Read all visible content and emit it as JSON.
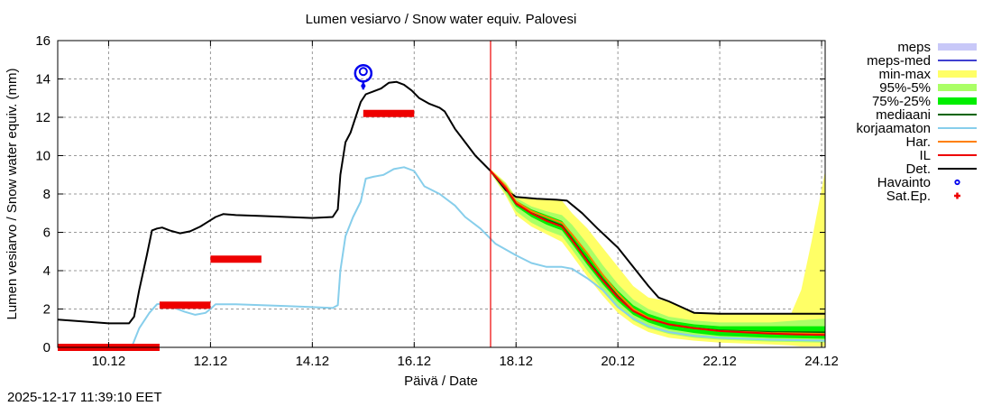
{
  "chart_data": {
    "type": "line",
    "title": "Lumen vesiarvo / Snow water equiv.  Palovesi",
    "xlabel": "Päivä / Date",
    "ylabel": "Lumen vesiarvo / Snow water equiv. (mm)",
    "xlim": [
      9.0,
      24.07
    ],
    "ylim": [
      0,
      16
    ],
    "grid": true,
    "x_unit": "day of December",
    "x_ticks": [
      10,
      12,
      14,
      16,
      18,
      20,
      22,
      24
    ],
    "x_tick_labels": [
      "10.12",
      "12.12",
      "14.12",
      "16.12",
      "18.12",
      "20.12",
      "22.12",
      "24.12"
    ],
    "y_ticks": [
      0,
      2,
      4,
      6,
      8,
      10,
      12,
      14,
      16
    ],
    "y_tick_labels": [
      "0",
      "2",
      "4",
      "6",
      "8",
      "10",
      "12",
      "14",
      "16"
    ],
    "now_line_x": 17.5,
    "legend_position": "right-outside",
    "legend": [
      {
        "label": "meps",
        "kind": "band",
        "color": "#c8c8f8"
      },
      {
        "label": "meps-med",
        "kind": "line",
        "color": "#4040d0"
      },
      {
        "label": "min-max",
        "kind": "band",
        "color": "#ffff66"
      },
      {
        "label": "95%-5%",
        "kind": "band",
        "color": "#aaff66"
      },
      {
        "label": "75%-25%",
        "kind": "band",
        "color": "#00ee00"
      },
      {
        "label": "mediaani",
        "kind": "line",
        "color": "#006400"
      },
      {
        "label": "korjaamaton",
        "kind": "line",
        "color": "#87ceeb"
      },
      {
        "label": "Har.",
        "kind": "line",
        "color": "#ff8000"
      },
      {
        "label": "IL",
        "kind": "line",
        "color": "#ee0000"
      },
      {
        "label": "Det.",
        "kind": "line",
        "color": "#000000"
      },
      {
        "label": "Havainto",
        "kind": "marker-circle",
        "color": "#0000ee"
      },
      {
        "label": "Sat.Ep.",
        "kind": "marker-plus",
        "color": "#ee0000"
      }
    ],
    "series": [
      {
        "name": "Det.",
        "color": "#000000",
        "x": [
          9.0,
          10.0,
          10.4,
          10.5,
          10.6,
          10.75,
          10.85,
          10.95,
          11.05,
          11.2,
          11.4,
          11.6,
          11.8,
          11.95,
          12.1,
          12.25,
          12.5,
          13.0,
          13.5,
          14.0,
          14.4,
          14.5,
          14.55,
          14.65,
          14.75,
          14.85,
          14.95,
          15.05,
          15.2,
          15.35,
          15.5,
          15.65,
          15.8,
          15.95,
          16.1,
          16.3,
          16.5,
          16.6,
          16.8,
          17.0,
          17.2,
          17.5,
          17.8,
          18.0,
          18.4,
          18.8,
          19.0,
          19.3,
          19.6,
          20.0,
          20.3,
          20.6,
          20.8,
          21.0,
          21.5,
          22.0,
          23.0,
          24.07
        ],
        "y": [
          1.45,
          1.25,
          1.25,
          1.6,
          3.0,
          4.8,
          6.1,
          6.2,
          6.25,
          6.1,
          5.95,
          6.05,
          6.3,
          6.55,
          6.8,
          6.95,
          6.9,
          6.85,
          6.8,
          6.75,
          6.8,
          7.2,
          9.0,
          10.7,
          11.2,
          12.0,
          12.8,
          13.2,
          13.35,
          13.5,
          13.8,
          13.85,
          13.7,
          13.4,
          13.0,
          12.7,
          12.5,
          12.3,
          11.4,
          10.7,
          10.0,
          9.2,
          8.2,
          7.85,
          7.75,
          7.7,
          7.65,
          7.0,
          6.2,
          5.2,
          4.2,
          3.2,
          2.6,
          2.4,
          1.8,
          1.75,
          1.75,
          1.75
        ]
      },
      {
        "name": "korjaamaton",
        "color": "#87ceeb",
        "x": [
          10.45,
          10.6,
          10.8,
          10.95,
          11.1,
          11.3,
          11.5,
          11.7,
          11.9,
          12.0,
          12.1,
          12.5,
          13.0,
          13.5,
          14.0,
          14.4,
          14.5,
          14.55,
          14.65,
          14.8,
          14.95,
          15.05,
          15.2,
          15.4,
          15.6,
          15.8,
          16.0,
          16.2,
          16.5,
          16.8,
          17.0,
          17.3,
          17.6,
          18.0,
          18.3,
          18.6,
          18.9,
          19.1,
          19.4,
          19.7,
          20.0,
          20.3,
          20.6,
          21.0,
          21.5,
          22.0,
          23.0,
          24.07
        ],
        "y": [
          0.0,
          1.0,
          1.8,
          2.25,
          2.3,
          2.05,
          1.85,
          1.7,
          1.8,
          2.0,
          2.25,
          2.25,
          2.2,
          2.15,
          2.1,
          2.05,
          2.2,
          4.0,
          5.8,
          6.8,
          7.6,
          8.8,
          8.9,
          9.0,
          9.3,
          9.4,
          9.2,
          8.4,
          8.0,
          7.4,
          6.8,
          6.2,
          5.4,
          4.8,
          4.4,
          4.2,
          4.2,
          4.1,
          3.6,
          3.0,
          2.1,
          1.5,
          1.1,
          0.8,
          0.6,
          0.5,
          0.4,
          0.35
        ]
      },
      {
        "name": "IL",
        "color": "#ee0000",
        "x": [
          17.5,
          17.8,
          18.0,
          18.3,
          18.6,
          18.9,
          19.1,
          19.4,
          19.7,
          20.0,
          20.3,
          20.6,
          21.0,
          21.5,
          22.0,
          22.5,
          23.0,
          23.5,
          24.07
        ],
        "y": [
          9.2,
          8.3,
          7.5,
          7.0,
          6.6,
          6.3,
          5.6,
          4.5,
          3.5,
          2.6,
          1.9,
          1.5,
          1.2,
          1.0,
          0.85,
          0.78,
          0.72,
          0.68,
          0.65
        ]
      },
      {
        "name": "Har.",
        "color": "#ff8000",
        "x": [
          17.5,
          17.8,
          18.0,
          18.3,
          18.6,
          18.9,
          19.1,
          19.4,
          19.7,
          20.0,
          20.3,
          20.6,
          21.0,
          21.5,
          22.0,
          23.0,
          24.07
        ],
        "y": [
          9.2,
          8.4,
          7.6,
          7.1,
          6.8,
          6.5,
          5.9,
          4.9,
          3.8,
          2.8,
          2.0,
          1.55,
          1.2,
          1.0,
          0.85,
          0.75,
          0.7
        ]
      },
      {
        "name": "mediaani",
        "color": "#006400",
        "x": [
          17.5,
          17.8,
          18.0,
          18.3,
          18.6,
          18.9,
          19.1,
          19.4,
          19.7,
          20.0,
          20.3,
          20.6,
          21.0,
          21.5,
          22.0,
          23.0,
          24.07
        ],
        "y": [
          9.2,
          8.3,
          7.5,
          7.0,
          6.65,
          6.35,
          5.65,
          4.55,
          3.55,
          2.65,
          1.95,
          1.5,
          1.2,
          1.0,
          0.88,
          0.8,
          0.78
        ]
      }
    ],
    "bands": [
      {
        "name": "min-max",
        "color": "#ffff66",
        "x": [
          17.5,
          17.8,
          18.0,
          18.3,
          18.6,
          18.9,
          19.1,
          19.4,
          19.7,
          20.0,
          20.3,
          20.6,
          21.0,
          21.5,
          22.0,
          22.5,
          23.0,
          23.4,
          23.6,
          23.8,
          24.07
        ],
        "low": [
          9.1,
          7.9,
          6.9,
          6.3,
          5.9,
          5.5,
          4.8,
          3.7,
          2.7,
          1.8,
          1.2,
          0.8,
          0.5,
          0.35,
          0.25,
          0.2,
          0.15,
          0.1,
          0.05,
          0.05,
          0.05
        ],
        "high": [
          9.3,
          8.6,
          7.85,
          7.75,
          7.7,
          7.65,
          7.0,
          6.2,
          5.2,
          4.2,
          3.2,
          2.6,
          2.4,
          1.8,
          1.75,
          1.75,
          1.75,
          1.75,
          3.0,
          5.5,
          9.2
        ]
      },
      {
        "name": "95%-5%",
        "color": "#aaff66",
        "x": [
          17.5,
          17.8,
          18.0,
          18.3,
          18.6,
          18.9,
          19.1,
          19.4,
          19.7,
          20.0,
          20.3,
          20.6,
          21.0,
          21.5,
          22.0,
          22.5,
          23.0,
          23.5,
          24.07
        ],
        "low": [
          9.15,
          8.0,
          7.1,
          6.5,
          6.1,
          5.8,
          5.1,
          4.0,
          3.0,
          2.1,
          1.4,
          1.0,
          0.7,
          0.5,
          0.4,
          0.35,
          0.3,
          0.28,
          0.25
        ],
        "high": [
          9.25,
          8.55,
          7.8,
          7.35,
          7.1,
          6.9,
          6.4,
          5.4,
          4.3,
          3.3,
          2.5,
          2.0,
          1.6,
          1.4,
          1.3,
          1.3,
          1.3,
          1.4,
          1.5
        ]
      },
      {
        "name": "75%-25%",
        "color": "#00ee00",
        "x": [
          17.5,
          17.8,
          18.0,
          18.3,
          18.6,
          18.9,
          19.1,
          19.4,
          19.7,
          20.0,
          20.3,
          20.6,
          21.0,
          21.5,
          22.0,
          22.5,
          23.0,
          23.5,
          24.07
        ],
        "low": [
          9.18,
          8.15,
          7.35,
          6.8,
          6.4,
          6.1,
          5.4,
          4.3,
          3.3,
          2.4,
          1.7,
          1.3,
          0.95,
          0.75,
          0.6,
          0.55,
          0.5,
          0.48,
          0.45
        ],
        "high": [
          9.22,
          8.45,
          7.65,
          7.2,
          6.9,
          6.6,
          5.95,
          4.9,
          3.85,
          2.95,
          2.2,
          1.75,
          1.4,
          1.2,
          1.1,
          1.1,
          1.1,
          1.1,
          1.1
        ]
      }
    ],
    "havainto": [
      {
        "x": 15.0,
        "y": 14.2
      }
    ],
    "sat_ep": [
      {
        "x_start": 9.0,
        "x_end": 11.0,
        "y": 0.0
      },
      {
        "x_start": 11.0,
        "x_end": 12.0,
        "y": 2.2
      },
      {
        "x_start": 12.0,
        "x_end": 13.0,
        "y": 4.6
      },
      {
        "x_start": 15.0,
        "x_end": 16.0,
        "y": 12.2
      }
    ]
  },
  "footer": {
    "timestamp": "2025-12-17 11:39:10 EET"
  }
}
